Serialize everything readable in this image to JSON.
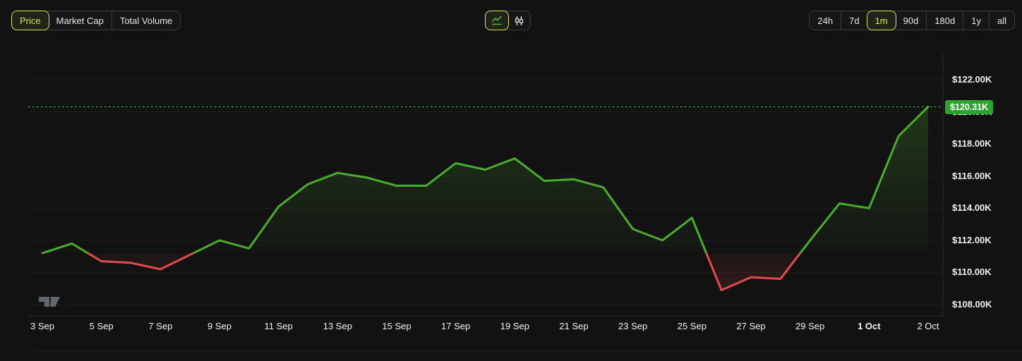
{
  "toolbar": {
    "metric_tabs": [
      {
        "label": "Price",
        "selected": true
      },
      {
        "label": "Market Cap",
        "selected": false
      },
      {
        "label": "Total Volume",
        "selected": false
      }
    ],
    "chart_type_toggle": [
      {
        "icon": "line-chart-icon",
        "selected": true
      },
      {
        "icon": "candlestick-icon",
        "selected": false
      }
    ],
    "range_tabs": [
      {
        "label": "24h",
        "selected": false
      },
      {
        "label": "7d",
        "selected": false
      },
      {
        "label": "1m",
        "selected": true
      },
      {
        "label": "90d",
        "selected": false
      },
      {
        "label": "180d",
        "selected": false
      },
      {
        "label": "1y",
        "selected": false
      },
      {
        "label": "all",
        "selected": false
      }
    ]
  },
  "price_badge": {
    "label": "$120.31K"
  },
  "watermark": {
    "icon": "tradingview-logo"
  },
  "colors": {
    "background": "#121212",
    "accent": "#d7e94f",
    "line_green": "#4bab2e",
    "line_red": "#e4494e",
    "badge_green": "#2ea32e",
    "dotted_line_green": "#45ad45",
    "grid": "rgba(255,255,255,0.055)",
    "axis_border": "#2b2b2b",
    "label_text": "#f2f2f2"
  },
  "chart_data": {
    "type": "line",
    "title": "",
    "unit": "USD thousands",
    "x_unit": "day index from 3 Sep (1 unit = 1 day; 30 = end of 2 Oct)",
    "series": [
      {
        "name": "Price",
        "points": [
          [
            0,
            111.2
          ],
          [
            1,
            111.8
          ],
          [
            2,
            110.7
          ],
          [
            3,
            110.6
          ],
          [
            4,
            110.2
          ],
          [
            5,
            111.1
          ],
          [
            6,
            112.0
          ],
          [
            7,
            111.5
          ],
          [
            8,
            114.1
          ],
          [
            9,
            115.5
          ],
          [
            10,
            116.2
          ],
          [
            11,
            115.9
          ],
          [
            12,
            115.4
          ],
          [
            13,
            115.4
          ],
          [
            14,
            116.8
          ],
          [
            15,
            116.4
          ],
          [
            16,
            117.1
          ],
          [
            17,
            115.7
          ],
          [
            18,
            115.8
          ],
          [
            19,
            115.3
          ],
          [
            20,
            112.7
          ],
          [
            21,
            112.0
          ],
          [
            22,
            113.4
          ],
          [
            23,
            108.9
          ],
          [
            24,
            109.7
          ],
          [
            25,
            109.6
          ],
          [
            26,
            112.0
          ],
          [
            27,
            114.3
          ],
          [
            28,
            114.0
          ],
          [
            29,
            118.5
          ],
          [
            30,
            120.31
          ]
        ]
      }
    ],
    "baseline_value": 111.2,
    "color_rule": "green above baseline (first value), red below baseline",
    "last_price": 120.31,
    "last_price_label": "$120.31K",
    "ylim": [
      108,
      122
    ],
    "grid": "horizontal",
    "legend": "none",
    "y_ticks": [
      {
        "value": 122,
        "label": "$122.00K"
      },
      {
        "value": 120,
        "label": "$120.00K"
      },
      {
        "value": 118,
        "label": "$118.00K"
      },
      {
        "value": 116,
        "label": "$116.00K"
      },
      {
        "value": 114,
        "label": "$114.00K"
      },
      {
        "value": 112,
        "label": "$112.00K"
      },
      {
        "value": 110,
        "label": "$110.00K"
      },
      {
        "value": 108,
        "label": "$108.00K"
      }
    ],
    "x_ticks": [
      {
        "day": 0,
        "label": "3 Sep"
      },
      {
        "day": 2,
        "label": "5 Sep"
      },
      {
        "day": 4,
        "label": "7 Sep"
      },
      {
        "day": 6,
        "label": "9 Sep"
      },
      {
        "day": 8,
        "label": "11 Sep"
      },
      {
        "day": 10,
        "label": "13 Sep"
      },
      {
        "day": 12,
        "label": "15 Sep"
      },
      {
        "day": 14,
        "label": "17 Sep"
      },
      {
        "day": 16,
        "label": "19 Sep"
      },
      {
        "day": 18,
        "label": "21 Sep"
      },
      {
        "day": 20,
        "label": "23 Sep"
      },
      {
        "day": 22,
        "label": "25 Sep"
      },
      {
        "day": 24,
        "label": "27 Sep"
      },
      {
        "day": 26,
        "label": "29 Sep"
      },
      {
        "day": 28,
        "label": "1 Oct",
        "bold": true
      },
      {
        "day": 30,
        "label": "2 Oct"
      }
    ]
  }
}
